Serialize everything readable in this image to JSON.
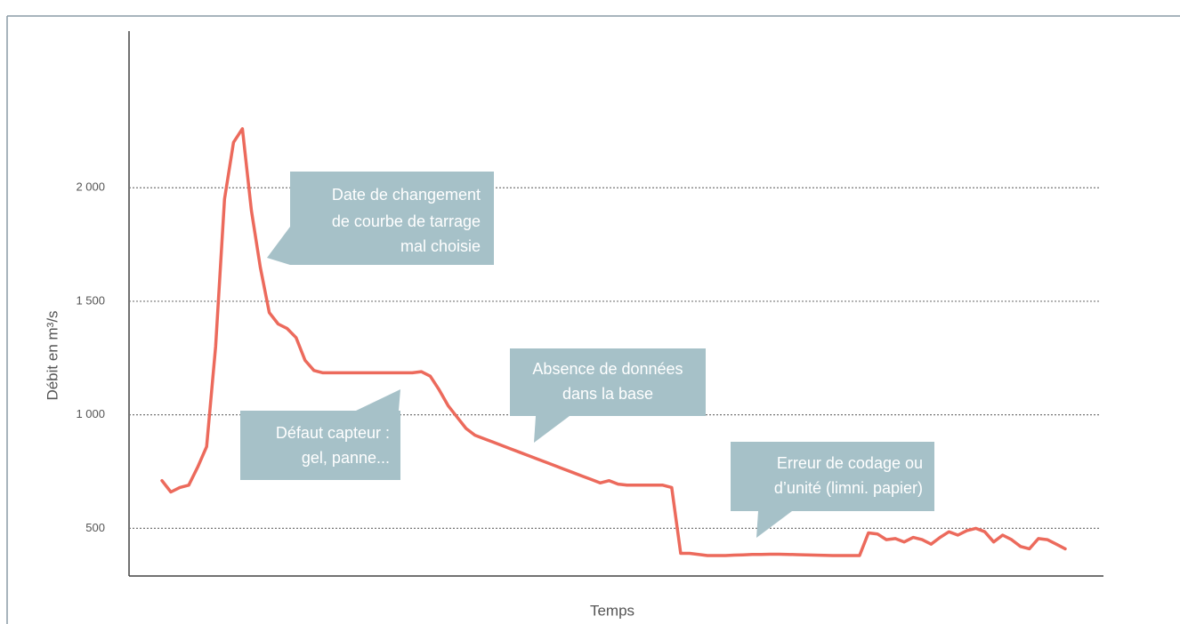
{
  "chart_data": {
    "type": "line",
    "x_label": "Temps",
    "y_label": "Débit en m³/s",
    "ylim": [
      290,
      2690
    ],
    "yticks": [
      {
        "value": 500,
        "label": "500"
      },
      {
        "value": 1000,
        "label": "1 000"
      },
      {
        "value": 1500,
        "label": "1 500"
      },
      {
        "value": 2000,
        "label": "2 000"
      }
    ],
    "grid": true,
    "categories": [
      null,
      null,
      null,
      null,
      null,
      null,
      null,
      null,
      null,
      null,
      null,
      null,
      null,
      null,
      null,
      null,
      null,
      null,
      null,
      null,
      null,
      null,
      null,
      null,
      null,
      null,
      null,
      null,
      null,
      null,
      null,
      null,
      null,
      null,
      null,
      null,
      null,
      null,
      null,
      null,
      null,
      null,
      null,
      null,
      null,
      null,
      null,
      null,
      null,
      null,
      null,
      null,
      null,
      null,
      null,
      null,
      null,
      null,
      null,
      null,
      null,
      null,
      null,
      null,
      null,
      null,
      null,
      null,
      null,
      null,
      null,
      null,
      null,
      null,
      null,
      null,
      null,
      null,
      null,
      null,
      null,
      null,
      null,
      null,
      null,
      null,
      null,
      null,
      null,
      null,
      null,
      null,
      null,
      null,
      null,
      null,
      null,
      null,
      null,
      null,
      null,
      null
    ],
    "color": "#ec6a5c",
    "values": [
      710,
      660,
      680,
      690,
      770,
      860,
      1300,
      1950,
      2200,
      2260,
      1900,
      1650,
      1450,
      1400,
      1380,
      1340,
      1240,
      1195,
      1185,
      1185,
      1185,
      1185,
      1185,
      1185,
      1185,
      1185,
      1185,
      1185,
      1185,
      1190,
      1170,
      1110,
      1040,
      990,
      940,
      910,
      895,
      880,
      865,
      850,
      835,
      820,
      805,
      790,
      775,
      760,
      745,
      730,
      715,
      700,
      710,
      695,
      690,
      690,
      690,
      690,
      690,
      680,
      390,
      390,
      385,
      380,
      380,
      380,
      382,
      383,
      385,
      385,
      386,
      386,
      385,
      384,
      383,
      382,
      381,
      380,
      380,
      380,
      380,
      480,
      475,
      450,
      455,
      440,
      460,
      450,
      430,
      460,
      485,
      470,
      490,
      500,
      485,
      440,
      470,
      450,
      420,
      410,
      455,
      450,
      430,
      410
    ],
    "annotations": [
      {
        "lines": [
          "Date de changement",
          "de courbe de tarrage",
          "mal choisie"
        ]
      },
      {
        "lines": [
          "Défaut capteur :",
          "gel, panne..."
        ]
      },
      {
        "lines": [
          "Absence de données",
          "dans la base"
        ]
      },
      {
        "lines": [
          "Erreur de codage ou",
          "d’unité (limni. papier)"
        ]
      }
    ]
  }
}
